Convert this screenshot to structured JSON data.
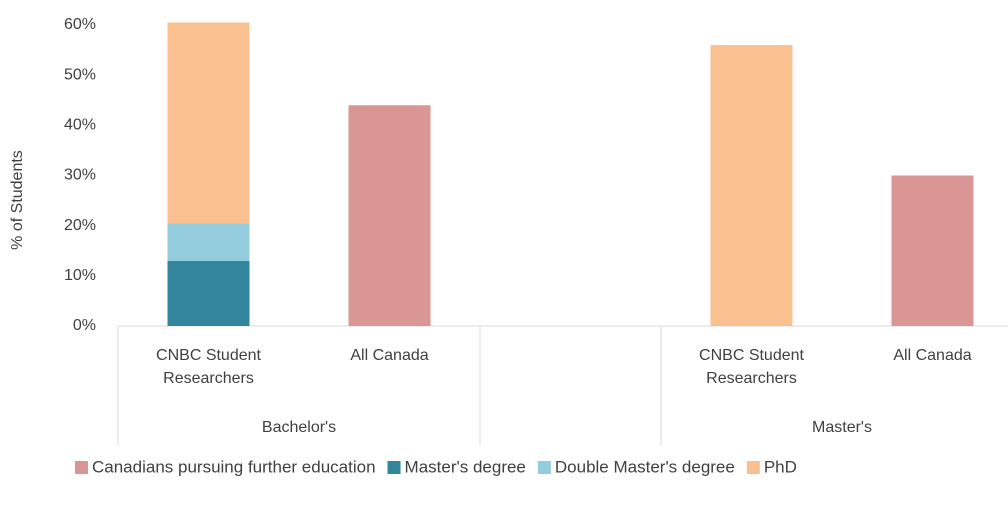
{
  "chart_data": {
    "type": "stacked_bar",
    "y_label": "% of Students",
    "categories": [
      "CNBC Student Researchers",
      "All Canada",
      null,
      "CNBC Student Researchers",
      "All Canada"
    ],
    "groups": [
      "Bachelor's",
      "Master's"
    ],
    "series": [
      {
        "name": "Canadians pursuing further education",
        "color": "#d99694",
        "values": [
          null,
          44,
          null,
          null,
          30
        ]
      },
      {
        "name": "Master's degree",
        "color": "#31859c",
        "values": [
          13,
          null,
          null,
          null,
          null
        ]
      },
      {
        "name": "Double Master's degree",
        "color": "#93cddd",
        "values": [
          7.5,
          null,
          null,
          null,
          null
        ]
      },
      {
        "name": "PhD",
        "color": "#fac090",
        "values": [
          40,
          null,
          null,
          56,
          null
        ]
      }
    ],
    "ylim": [
      0,
      60
    ],
    "yticks": [
      {
        "value": 0,
        "label": "0%"
      },
      {
        "value": 10,
        "label": "10%"
      },
      {
        "value": 20,
        "label": "20%"
      },
      {
        "value": 30,
        "label": "30%"
      },
      {
        "value": 40,
        "label": "40%"
      },
      {
        "value": 50,
        "label": "50%"
      },
      {
        "value": 60,
        "label": "60%"
      }
    ],
    "grid": false,
    "legend": "bottom"
  }
}
